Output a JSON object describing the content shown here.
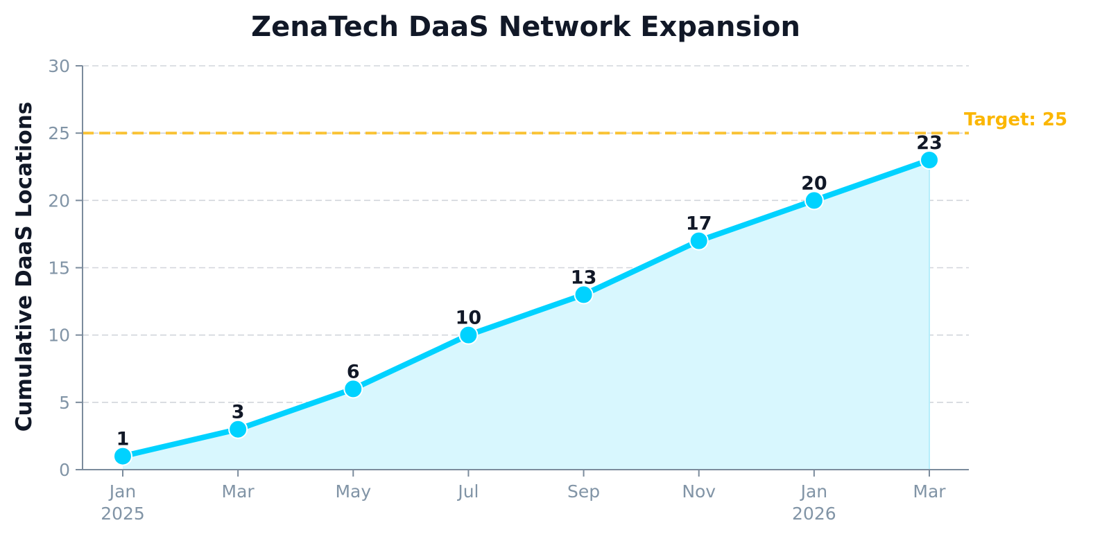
{
  "chart_data": {
    "type": "area",
    "title": "ZenaTech DaaS Network Expansion",
    "xlabel": "",
    "ylabel": "Cumulative DaaS Locations",
    "categories": [
      "Jan 2025",
      "Mar",
      "May",
      "Jul",
      "Sep",
      "Nov",
      "Jan 2026",
      "Mar"
    ],
    "tick_labels": [
      [
        "Jan",
        "2025"
      ],
      [
        "Mar"
      ],
      [
        "May"
      ],
      [
        "Jul"
      ],
      [
        "Sep"
      ],
      [
        "Nov"
      ],
      [
        "Jan",
        "2026"
      ],
      [
        "Mar"
      ]
    ],
    "series": [
      {
        "name": "Cumulative DaaS Locations",
        "values": [
          1,
          3,
          6,
          10,
          13,
          17,
          20,
          23
        ],
        "data_labels": [
          "1",
          "3",
          "6",
          "10",
          "13",
          "17",
          "20",
          "23"
        ]
      }
    ],
    "ylim": [
      0,
      30
    ],
    "yticks": [
      0,
      5,
      10,
      15,
      20,
      25,
      30
    ],
    "grid": true,
    "target": {
      "value": 25,
      "label": "Target: 25"
    },
    "colors": {
      "line": "#00d2ff",
      "fill": "#d8f7fe",
      "target": "#fbbf24",
      "target_text": "#fbb600",
      "axis": "#7b8b9c",
      "tick_text": "#8194a6",
      "text": "#111827"
    }
  }
}
